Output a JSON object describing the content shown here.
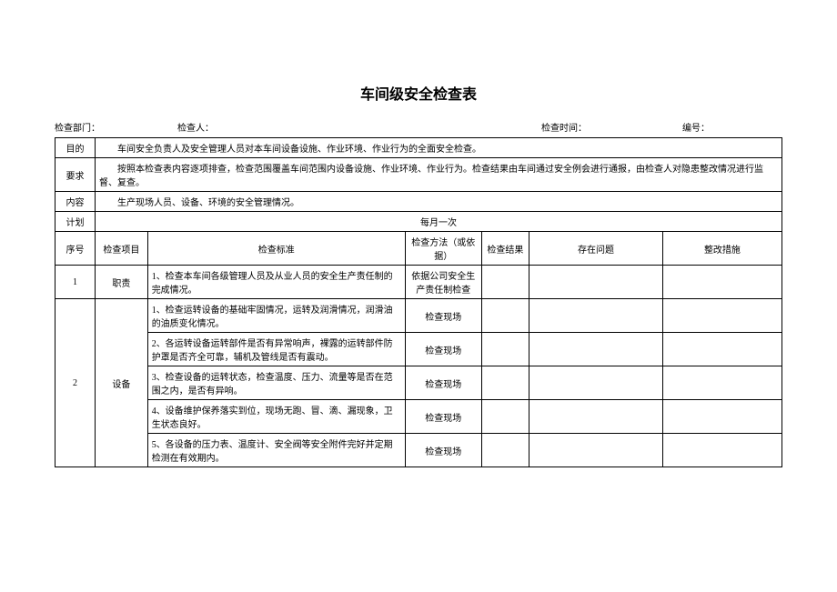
{
  "title": "车间级安全检查表",
  "meta": {
    "dept_label": "检查部门：",
    "inspector_label": "检查人：",
    "time_label": "检查时间：",
    "no_label": "编号："
  },
  "hdr": {
    "purpose_label": "目的",
    "purpose_text": "车间安全负责人及安全管理人员对本车间设备设施、作业环境、作业行为的全面安全检查。",
    "req_label": "要求",
    "req_text": "按照本检查表内容逐项排查，检查范围覆盖车间范围内设备设施、作业环境、作业行为。检查结果由车间通过安全例会进行通报，由检查人对隐患整改情况进行监督、复查。",
    "content_label": "内容",
    "content_text": "生产现场人员、设备、环境的安全管理情况。",
    "plan_label": "计划",
    "plan_text": "每月一次"
  },
  "cols": {
    "seq": "序号",
    "item": "检查项目",
    "std": "检查标准",
    "method": "检查方法（或依据）",
    "result": "检查结果",
    "problem": "存在问题",
    "action": "整改措施"
  },
  "rows": [
    {
      "seq": "1",
      "item": "职责",
      "entries": [
        {
          "std": "1、检查本车间各级管理人员及从业人员的安全生产责任制的完成情况。",
          "method": "依据公司安全生产责任制检查"
        }
      ]
    },
    {
      "seq": "2",
      "item": "设备",
      "entries": [
        {
          "std": "1、检查运转设备的基础牢固情况，运转及润滑情况，润滑油的油质变化情况。",
          "method": "检查现场"
        },
        {
          "std": "2、各运转设备运转部件是否有异常响声，裸露的运转部件防护罩是否齐全可靠，辅机及管线是否有震动。",
          "method": "检查现场"
        },
        {
          "std": "3、检查设备的运转状态，检查温度、压力、流量等是否在范围之内，是否有异响。",
          "method": "检查现场"
        },
        {
          "std": "4、设备维护保养落实到位，现场无跑、冒、滴、漏现象，卫生状态良好。",
          "method": "检查现场"
        },
        {
          "std": "5、各设备的压力表、温度计、安全阀等安全附件完好并定期检测在有效期内。",
          "method": "检查现场"
        }
      ]
    }
  ]
}
